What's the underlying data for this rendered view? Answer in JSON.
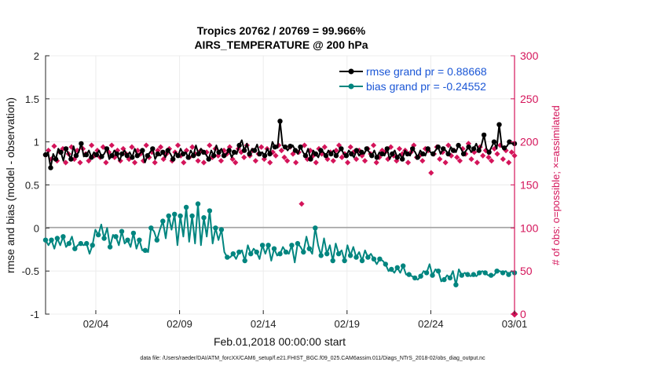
{
  "chart_data": {
    "type": "line",
    "title": "Tropics 20762 / 20769 = 99.966%",
    "subtitle": "AIRS_TEMPERATURE @ 200 hPa",
    "xlabel": "Feb.01,2018 00:00:00 start",
    "ylabel_left": "rmse and bias (model - observation)",
    "ylabel_right": "# of obs: o=possible; ×=assimilated",
    "footer": "data file: /Users/raeder/DAI/ATM_forcXX/CAM6_setup/f.e21.FHIST_BGC.f09_025.CAM6assim.011/Diags_NTrS_2018-02/obs_diag_output.nc",
    "ylim_left": [
      -1,
      2
    ],
    "ylim_right": [
      0,
      300
    ],
    "xlim_days": [
      1.0,
      29.0
    ],
    "yticks_left": [
      "-1",
      "-0.5",
      "0",
      "0.5",
      "1",
      "1.5",
      "2"
    ],
    "yticks_right": [
      "0",
      "50",
      "100",
      "150",
      "200",
      "250",
      "300"
    ],
    "xticks": [
      {
        "day": 4,
        "label": "02/04"
      },
      {
        "day": 9,
        "label": "02/09"
      },
      {
        "day": 14,
        "label": "02/14"
      },
      {
        "day": 19,
        "label": "02/19"
      },
      {
        "day": 24,
        "label": "02/24"
      },
      {
        "day": 29,
        "label": "03/01"
      }
    ],
    "x_start_day": 1.0,
    "x_step_days": 0.25,
    "legend": [
      {
        "label": "rmse grand pr = 0.88668",
        "color": "#000000"
      },
      {
        "label": "bias grand pr = -0.24552",
        "color": "#00857f"
      }
    ],
    "series": [
      {
        "name": "rmse",
        "color": "#000000",
        "axis": "left",
        "values": [
          0.85,
          0.88,
          0.7,
          0.86,
          0.8,
          0.92,
          0.88,
          0.78,
          0.92,
          0.86,
          0.8,
          0.95,
          0.84,
          0.88,
          0.98,
          0.83,
          0.85,
          0.9,
          0.82,
          0.88,
          0.85,
          0.9,
          0.83,
          0.86,
          0.92,
          0.8,
          0.84,
          0.9,
          0.86,
          0.78,
          0.86,
          0.9,
          0.84,
          0.88,
          0.82,
          0.92,
          0.84,
          0.86,
          0.9,
          0.76,
          0.84,
          0.88,
          0.92,
          0.8,
          0.86,
          0.84,
          0.88,
          0.82,
          0.9,
          0.86,
          0.8,
          0.88,
          0.84,
          0.92,
          0.86,
          0.88,
          0.82,
          0.9,
          0.84,
          0.96,
          0.86,
          0.92,
          0.88,
          0.85,
          0.8,
          0.9,
          0.84,
          0.96,
          0.88,
          0.92,
          0.84,
          0.86,
          0.9,
          0.82,
          0.88,
          0.86,
          0.96,
          1.02,
          0.9,
          0.98,
          0.86,
          0.92,
          0.9,
          0.97,
          0.86,
          0.88,
          0.84,
          0.92,
          0.86,
          1.0,
          0.94,
          0.93,
          1.24,
          0.96,
          0.94,
          0.9,
          0.95,
          0.96,
          0.9,
          0.86,
          0.94,
          0.88,
          0.84,
          0.92,
          0.8,
          0.9,
          0.86,
          0.82,
          0.9,
          0.88,
          0.84,
          0.9,
          0.86,
          0.9,
          0.84,
          0.88,
          0.92,
          0.86,
          0.84,
          0.9,
          0.86,
          0.82,
          0.9,
          0.84,
          0.88,
          0.86,
          0.92,
          0.88,
          0.84,
          0.9,
          0.82,
          0.88,
          0.86,
          0.84,
          0.92,
          0.8,
          0.86,
          0.9,
          0.82,
          0.86,
          0.8,
          0.9,
          0.86,
          0.84,
          0.92,
          0.88,
          0.82,
          0.9,
          0.86,
          0.84,
          0.92,
          0.88,
          0.86,
          0.9,
          0.94,
          0.86,
          0.92,
          0.9,
          0.86,
          0.94,
          0.9,
          0.88,
          0.96,
          0.92,
          0.86,
          0.9,
          0.94,
          0.88,
          0.92,
          0.98,
          0.9,
          0.96,
          1.08,
          0.92,
          0.88,
          0.94,
          1.0,
          0.92,
          1.2,
          0.94,
          0.93,
          0.95,
          1.0,
          0.98,
          0.98
        ],
        "point_every": 2
      },
      {
        "name": "bias",
        "color": "#00857f",
        "axis": "left",
        "values": [
          -0.14,
          -0.2,
          -0.14,
          -0.24,
          -0.12,
          -0.2,
          -0.1,
          -0.22,
          -0.18,
          -0.1,
          -0.24,
          -0.2,
          -0.18,
          -0.2,
          -0.18,
          -0.3,
          -0.2,
          -0.02,
          -0.08,
          0.04,
          -0.12,
          0.0,
          -0.22,
          -0.08,
          -0.1,
          -0.2,
          -0.04,
          -0.18,
          -0.14,
          -0.22,
          -0.06,
          -0.24,
          -0.14,
          -0.26,
          -0.26,
          -0.28,
          0.0,
          -0.04,
          -0.14,
          -0.02,
          0.08,
          -0.12,
          0.14,
          -0.02,
          0.16,
          -0.2,
          0.14,
          -0.1,
          0.24,
          -0.16,
          0.14,
          -0.18,
          0.28,
          -0.2,
          0.12,
          -0.1,
          0.2,
          -0.18,
          0.0,
          -0.14,
          -0.02,
          -0.28,
          -0.34,
          -0.34,
          -0.3,
          -0.36,
          -0.28,
          -0.26,
          -0.38,
          -0.2,
          -0.3,
          -0.24,
          -0.28,
          -0.36,
          -0.2,
          -0.3,
          -0.2,
          -0.38,
          -0.24,
          -0.32,
          -0.3,
          -0.22,
          -0.28,
          -0.3,
          -0.2,
          -0.4,
          -0.18,
          -0.22,
          -0.28,
          -0.1,
          -0.24,
          -0.3,
          0.0,
          -0.2,
          -0.32,
          -0.12,
          -0.3,
          -0.2,
          -0.38,
          -0.18,
          -0.3,
          -0.26,
          -0.38,
          -0.2,
          -0.32,
          -0.22,
          -0.34,
          -0.28,
          -0.38,
          -0.26,
          -0.34,
          -0.3,
          -0.36,
          -0.42,
          -0.36,
          -0.38,
          -0.42,
          -0.5,
          -0.48,
          -0.52,
          -0.46,
          -0.52,
          -0.44,
          -0.54,
          -0.54,
          -0.56,
          -0.58,
          -0.6,
          -0.56,
          -0.5,
          -0.52,
          -0.42,
          -0.55,
          -0.48,
          -0.5,
          -0.62,
          -0.6,
          -0.55,
          -0.58,
          -0.5,
          -0.66,
          -0.48,
          -0.55,
          -0.52,
          -0.54,
          -0.56,
          -0.54,
          -0.56,
          -0.52,
          -0.5,
          -0.52,
          -0.55,
          -0.55,
          -0.55,
          -0.5,
          -0.5,
          -0.52,
          -0.5,
          -0.54,
          -0.5,
          -0.52
        ],
        "point_every": 2
      }
    ],
    "obs": {
      "color": "#d4145a",
      "axis": "right",
      "values": [
        185,
        190,
        180,
        195,
        178,
        188,
        192,
        176,
        186,
        194,
        180,
        190,
        176,
        192,
        186,
        178,
        196,
        184,
        190,
        182,
        194,
        176,
        188,
        196,
        182,
        190,
        178,
        192,
        186,
        180,
        194,
        176,
        190,
        186,
        178,
        196,
        182,
        188,
        176,
        190,
        194,
        180,
        186,
        192,
        178,
        188,
        196,
        184,
        176,
        190,
        182,
        194,
        186,
        178,
        190,
        176,
        188,
        196,
        182,
        192,
        184,
        178,
        190,
        186,
        194,
        180,
        176,
        192,
        188,
        182,
        196,
        184,
        190,
        178,
        186,
        194,
        180,
        192,
        176,
        188,
        184,
        196,
        190,
        182,
        178,
        194,
        186,
        176,
        188,
        128,
        196,
        180,
        190,
        184,
        176,
        192,
        186,
        194,
        180,
        188,
        178,
        190,
        196,
        182,
        186,
        176,
        194,
        188,
        180,
        190,
        184,
        178,
        192,
        186,
        196,
        176,
        182,
        190,
        188,
        180,
        194,
        184,
        178,
        192,
        186,
        190,
        176,
        188,
        196,
        182,
        184,
        178,
        192,
        190,
        164,
        186,
        194,
        180,
        188,
        176,
        196,
        184,
        190,
        182,
        178,
        192,
        186,
        198,
        180,
        188,
        176,
        194,
        184,
        190,
        182,
        178,
        192,
        186,
        196,
        180,
        190,
        176,
        188,
        184
      ]
    }
  }
}
